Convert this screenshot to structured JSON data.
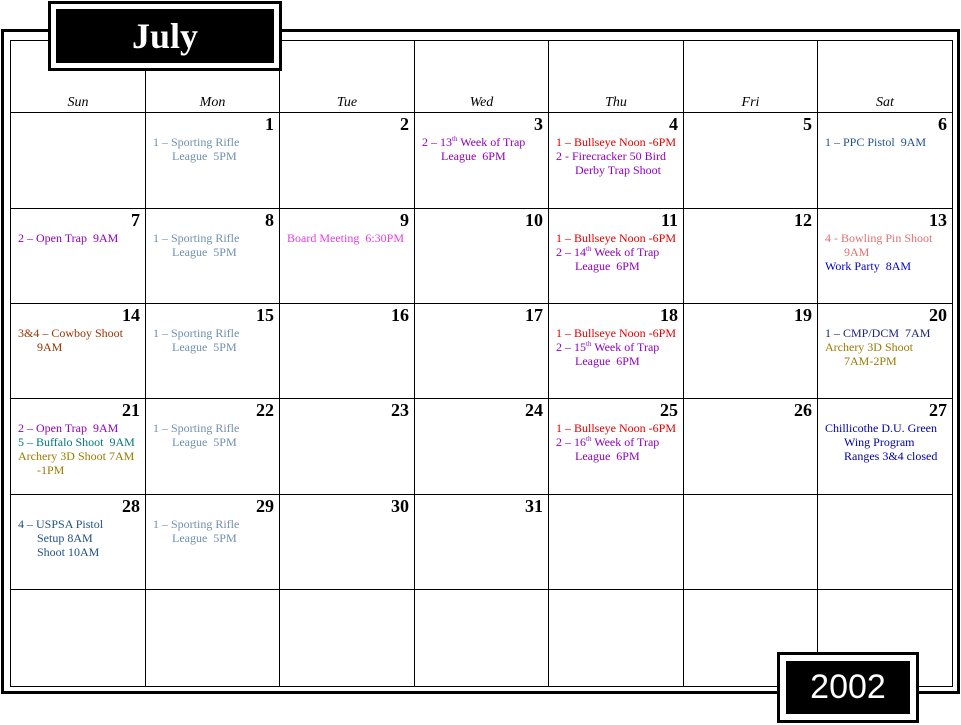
{
  "header": {
    "month": "July",
    "year": "2002"
  },
  "weekdays": [
    "Sun",
    "Mon",
    "Tue",
    "Wed",
    "Thu",
    "Fri",
    "Sat"
  ],
  "weeks": [
    [
      null,
      {
        "day": 1,
        "events": [
          {
            "color": "#6f8fb0",
            "lines": [
              "1 – Sporting Rifle",
              "League  5PM"
            ]
          }
        ]
      },
      {
        "day": 2,
        "events": []
      },
      {
        "day": 3,
        "events": [
          {
            "color": "#9000c0",
            "lines": [
              [
                "2 – 13",
                "th",
                " Week of Trap"
              ],
              "League  6PM"
            ]
          }
        ]
      },
      {
        "day": 4,
        "events": [
          {
            "color": "#e00000",
            "lines": [
              "1 – Bullseye Noon -6PM"
            ]
          },
          {
            "color": "#9000c0",
            "lines": [
              "2 - Firecracker 50 Bird",
              "Derby Trap Shoot"
            ]
          }
        ]
      },
      {
        "day": 5,
        "events": []
      },
      {
        "day": 6,
        "events": [
          {
            "color": "#1f4f8f",
            "lines": [
              "1 – PPC Pistol  9AM"
            ]
          }
        ]
      }
    ],
    [
      {
        "day": 7,
        "events": [
          {
            "color": "#9000c0",
            "lines": [
              "2 – Open Trap  9AM"
            ]
          }
        ]
      },
      {
        "day": 8,
        "events": [
          {
            "color": "#6f8fb0",
            "lines": [
              "1 – Sporting Rifle",
              "League  5PM"
            ]
          }
        ]
      },
      {
        "day": 9,
        "events": [
          {
            "color": "#e040e0",
            "lines": [
              "Board Meeting  6:30PM"
            ]
          }
        ]
      },
      {
        "day": 10,
        "events": []
      },
      {
        "day": 11,
        "events": [
          {
            "color": "#e00000",
            "lines": [
              "1 – Bullseye Noon -6PM"
            ]
          },
          {
            "color": "#9000c0",
            "lines": [
              [
                "2 – 14",
                "th",
                " Week of Trap"
              ],
              "League  6PM"
            ]
          }
        ]
      },
      {
        "day": 12,
        "events": []
      },
      {
        "day": 13,
        "events": [
          {
            "color": "#e07070",
            "lines": [
              "4 - Bowling Pin Shoot",
              "9AM"
            ]
          },
          {
            "color": "#0000cc",
            "lines": [
              "Work Party  8AM"
            ]
          }
        ]
      }
    ],
    [
      {
        "day": 14,
        "events": [
          {
            "color": "#993300",
            "lines": [
              "3&4 – Cowboy Shoot",
              "9AM"
            ]
          }
        ]
      },
      {
        "day": 15,
        "events": [
          {
            "color": "#6f8fb0",
            "lines": [
              "1 – Sporting Rifle",
              "League  5PM"
            ]
          }
        ]
      },
      {
        "day": 16,
        "events": []
      },
      {
        "day": 17,
        "events": []
      },
      {
        "day": 18,
        "events": [
          {
            "color": "#e00000",
            "lines": [
              "1 – Bullseye Noon -6PM"
            ]
          },
          {
            "color": "#9000c0",
            "lines": [
              [
                "2 – 15",
                "th",
                " Week of Trap"
              ],
              "League  6PM"
            ]
          }
        ]
      },
      {
        "day": 19,
        "events": []
      },
      {
        "day": 20,
        "events": [
          {
            "color": "#1a237e",
            "lines": [
              "1 – CMP/DCM  7AM"
            ]
          },
          {
            "color": "#997a00",
            "lines": [
              "Archery 3D Shoot",
              "7AM-2PM"
            ]
          }
        ]
      }
    ],
    [
      {
        "day": 21,
        "events": [
          {
            "color": "#9000c0",
            "lines": [
              "2 – Open Trap  9AM"
            ]
          },
          {
            "color": "#007777",
            "lines": [
              "5 – Buffalo Shoot  9AM"
            ]
          },
          {
            "color": "#997a00",
            "lines": [
              "Archery 3D Shoot 7AM",
              "-1PM"
            ]
          }
        ]
      },
      {
        "day": 22,
        "events": [
          {
            "color": "#6f8fb0",
            "lines": [
              "1 – Sporting Rifle",
              "League  5PM"
            ]
          }
        ]
      },
      {
        "day": 23,
        "events": []
      },
      {
        "day": 24,
        "events": []
      },
      {
        "day": 25,
        "events": [
          {
            "color": "#e00000",
            "lines": [
              "1 – Bullseye Noon -6PM"
            ]
          },
          {
            "color": "#9000c0",
            "lines": [
              [
                "2 – 16",
                "th",
                " Week of Trap"
              ],
              "League  6PM"
            ]
          }
        ]
      },
      {
        "day": 26,
        "events": []
      },
      {
        "day": 27,
        "events": [
          {
            "color": "#0000aa",
            "lines": [
              "Chillicothe D.U. Green",
              "Wing Program",
              "Ranges 3&4 closed"
            ]
          }
        ]
      }
    ],
    [
      {
        "day": 28,
        "events": [
          {
            "color": "#1f4f7f",
            "lines": [
              "4 – USPSA Pistol",
              "Setup 8AM",
              "Shoot 10AM"
            ]
          }
        ]
      },
      {
        "day": 29,
        "events": [
          {
            "color": "#6f8fb0",
            "lines": [
              "1 – Sporting Rifle",
              "League  5PM"
            ]
          }
        ]
      },
      {
        "day": 30,
        "events": []
      },
      {
        "day": 31,
        "events": []
      },
      null,
      null,
      null
    ],
    [
      null,
      null,
      null,
      null,
      null,
      null,
      null
    ]
  ]
}
